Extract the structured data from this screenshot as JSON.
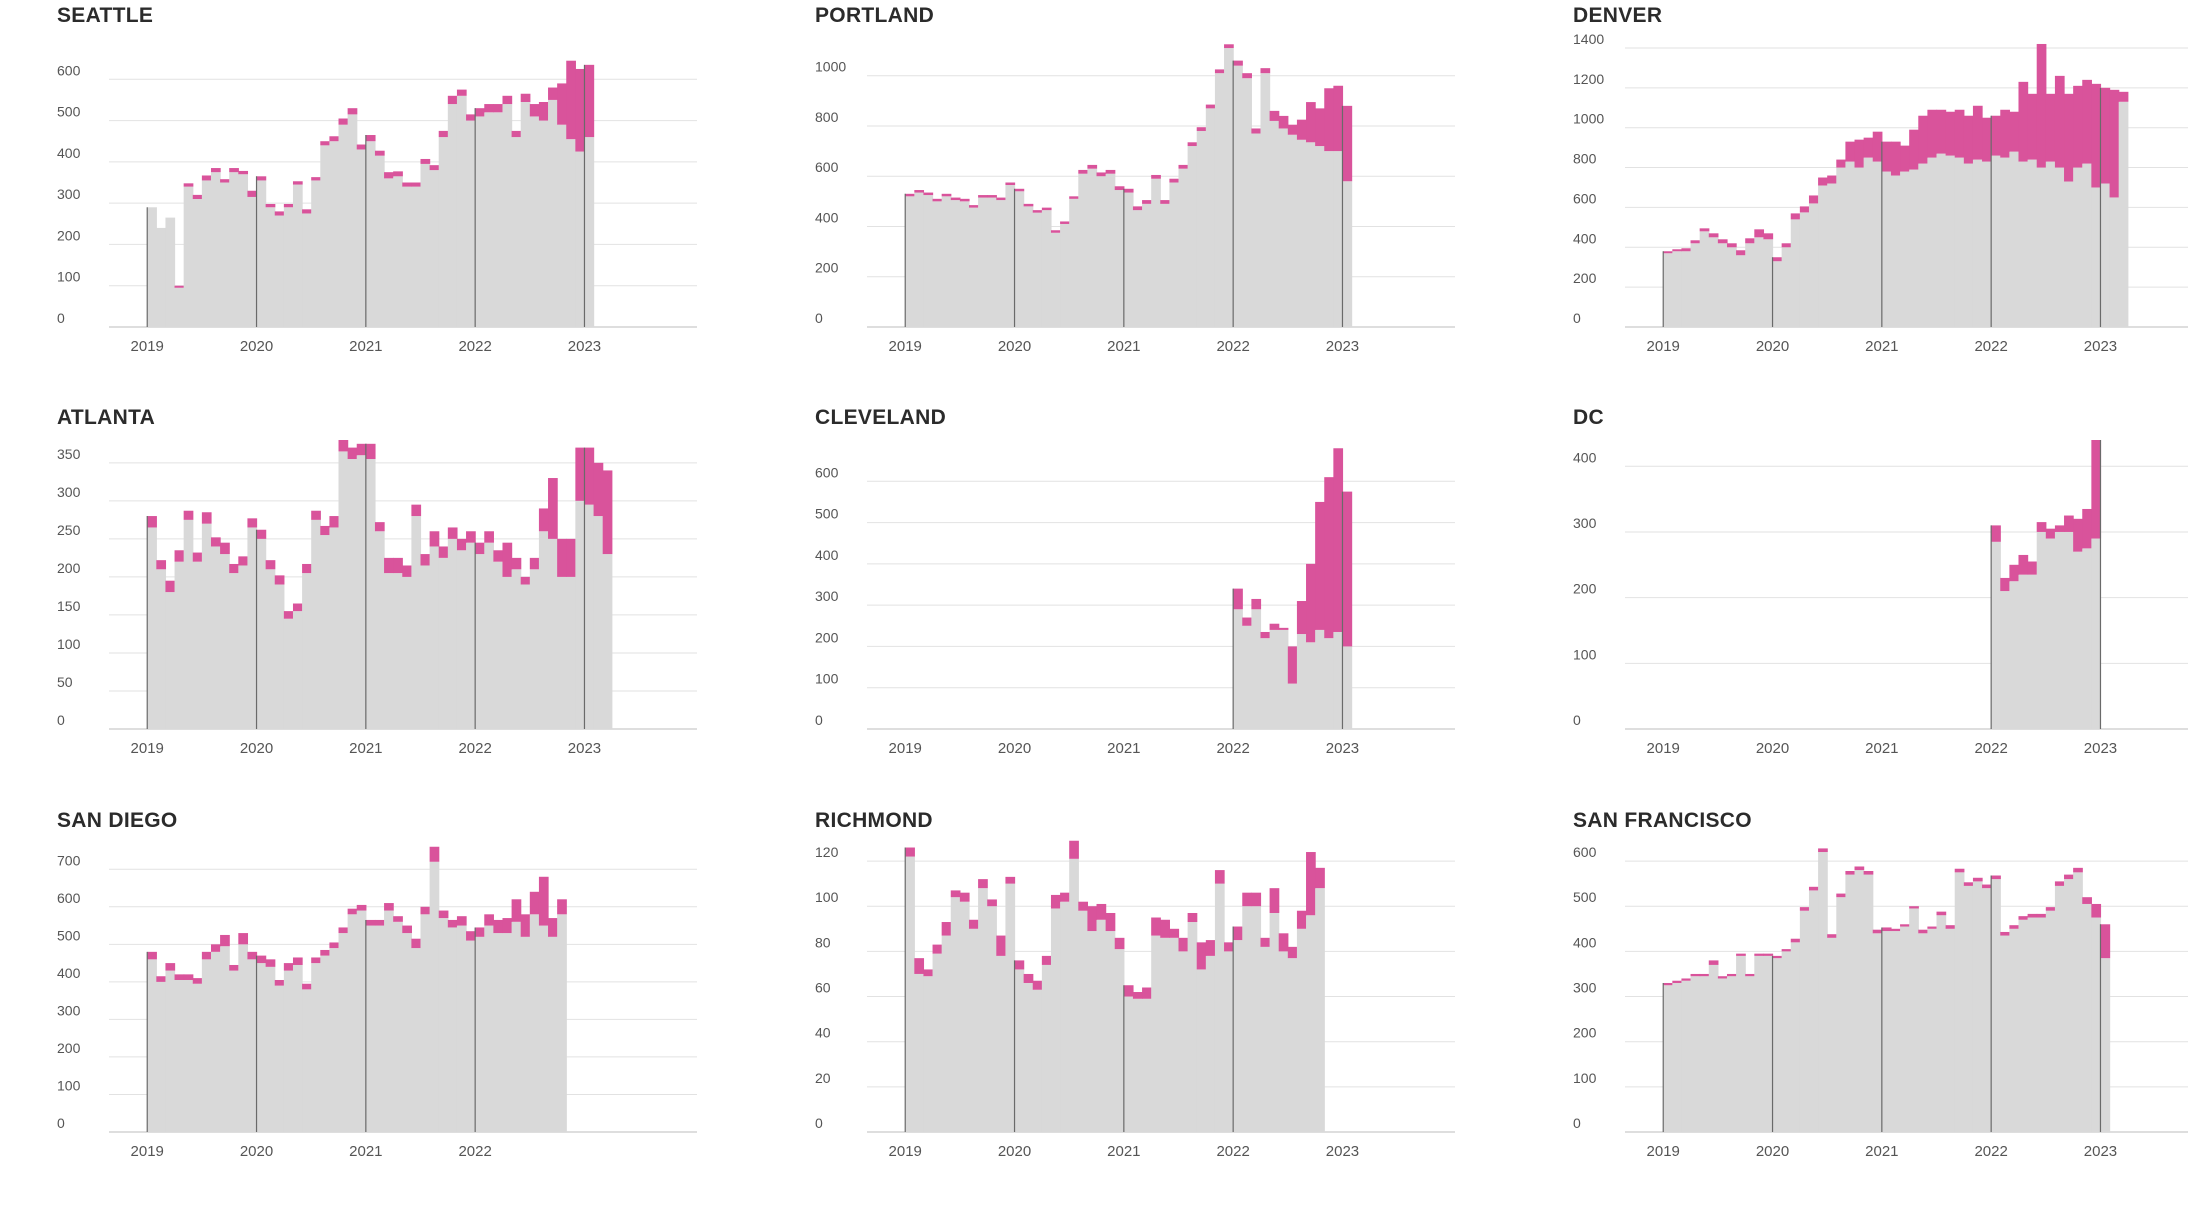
{
  "colors": {
    "base": "#d9d9d9",
    "highlight": "#d9539b",
    "grid": "#e2e2e2",
    "axis": "#bdbdbd",
    "year_line": "#6a6a6a",
    "text": "#555555",
    "title": "#2b2b2b"
  },
  "chart_data": [
    {
      "type": "bar",
      "title": "SEATTLE",
      "x_ticks": [
        "2019",
        "2020",
        "2021",
        "2022",
        "2023"
      ],
      "ylim": [
        0,
        700
      ],
      "y_ticks": [
        0,
        100,
        200,
        300,
        400,
        500,
        600
      ],
      "series": [
        {
          "values": [
            290,
            240,
            265,
            95,
            340,
            310,
            355,
            375,
            350,
            375,
            370,
            315,
            355,
            290,
            270,
            290,
            345,
            275,
            355,
            440,
            450,
            490,
            515,
            430,
            450,
            415,
            360,
            365,
            340,
            340,
            395,
            380,
            460,
            540,
            560,
            500,
            510,
            520,
            520,
            540,
            460,
            545,
            510,
            500,
            550,
            490,
            455,
            425,
            460
          ]
        },
        {
          "values": [
            0,
            0,
            0,
            5,
            8,
            10,
            12,
            10,
            8,
            10,
            8,
            15,
            10,
            8,
            10,
            8,
            8,
            10,
            8,
            10,
            12,
            15,
            15,
            12,
            15,
            12,
            15,
            12,
            10,
            10,
            12,
            12,
            15,
            20,
            15,
            15,
            20,
            20,
            20,
            20,
            15,
            20,
            30,
            45,
            30,
            100,
            190,
            200,
            175
          ]
        }
      ]
    },
    {
      "type": "bar",
      "title": "PORTLAND",
      "x_ticks": [
        "2019",
        "2020",
        "2021",
        "2022",
        "2023"
      ],
      "ylim": [
        0,
        1150
      ],
      "y_ticks": [
        0,
        200,
        400,
        600,
        800,
        1000
      ],
      "series": [
        {
          "values": [
            520,
            535,
            525,
            500,
            520,
            505,
            500,
            475,
            515,
            515,
            505,
            565,
            540,
            480,
            455,
            465,
            375,
            410,
            510,
            610,
            630,
            600,
            610,
            545,
            535,
            465,
            490,
            590,
            490,
            575,
            630,
            720,
            780,
            870,
            1010,
            1110,
            1040,
            990,
            770,
            1010,
            820,
            790,
            765,
            745,
            735,
            720,
            700,
            700,
            580
          ]
        },
        {
          "values": [
            10,
            10,
            10,
            10,
            10,
            10,
            10,
            10,
            10,
            10,
            10,
            10,
            10,
            10,
            10,
            10,
            10,
            10,
            10,
            15,
            15,
            15,
            15,
            15,
            15,
            15,
            15,
            15,
            15,
            15,
            15,
            15,
            15,
            15,
            15,
            15,
            20,
            20,
            20,
            20,
            40,
            50,
            40,
            80,
            160,
            150,
            250,
            260,
            300
          ]
        }
      ]
    },
    {
      "type": "bar",
      "title": "DENVER",
      "x_ticks": [
        "2019",
        "2020",
        "2021",
        "2022",
        "2023"
      ],
      "ylim": [
        0,
        1450
      ],
      "y_ticks": [
        0,
        200,
        400,
        600,
        800,
        1000,
        1200,
        1400
      ],
      "series": [
        {
          "values": [
            370,
            380,
            380,
            420,
            480,
            450,
            420,
            400,
            360,
            420,
            450,
            440,
            330,
            400,
            540,
            575,
            620,
            710,
            720,
            800,
            830,
            800,
            850,
            830,
            780,
            760,
            780,
            790,
            820,
            850,
            870,
            860,
            850,
            820,
            840,
            830,
            860,
            850,
            880,
            830,
            840,
            800,
            830,
            800,
            730,
            800,
            820,
            700,
            720,
            650,
            1130
          ]
        },
        {
          "values": [
            10,
            10,
            15,
            15,
            15,
            20,
            20,
            20,
            25,
            25,
            40,
            30,
            20,
            20,
            30,
            30,
            40,
            40,
            40,
            40,
            100,
            140,
            100,
            150,
            150,
            170,
            130,
            200,
            240,
            240,
            220,
            220,
            240,
            240,
            270,
            220,
            200,
            240,
            200,
            400,
            330,
            620,
            340,
            460,
            440,
            410,
            420,
            520,
            480,
            540,
            50
          ]
        }
      ]
    },
    {
      "type": "bar",
      "title": "ATLANTA",
      "x_ticks": [
        "2019",
        "2020",
        "2021",
        "2022",
        "2023"
      ],
      "ylim": [
        0,
        380
      ],
      "y_ticks": [
        0,
        50,
        100,
        150,
        200,
        250,
        300,
        350
      ],
      "series": [
        {
          "values": [
            265,
            210,
            180,
            220,
            275,
            220,
            270,
            240,
            230,
            205,
            215,
            265,
            250,
            210,
            190,
            145,
            155,
            205,
            275,
            255,
            265,
            365,
            355,
            360,
            355,
            260,
            205,
            205,
            200,
            280,
            215,
            240,
            225,
            250,
            235,
            245,
            230,
            245,
            220,
            200,
            210,
            190,
            210,
            260,
            250,
            200,
            200,
            300,
            295,
            280,
            230
          ]
        },
        {
          "values": [
            15,
            12,
            15,
            15,
            12,
            12,
            15,
            12,
            15,
            12,
            12,
            12,
            12,
            12,
            12,
            10,
            10,
            12,
            12,
            12,
            15,
            15,
            15,
            15,
            20,
            12,
            20,
            20,
            15,
            15,
            15,
            20,
            15,
            15,
            15,
            15,
            15,
            15,
            15,
            45,
            15,
            10,
            15,
            30,
            80,
            50,
            50,
            70,
            75,
            70,
            110
          ]
        }
      ]
    },
    {
      "type": "bar",
      "title": "CLEVELAND",
      "x_ticks": [
        "2019",
        "2020",
        "2021",
        "2022",
        "2023"
      ],
      "ylim": [
        0,
        700
      ],
      "y_ticks": [
        0,
        100,
        200,
        300,
        400,
        500,
        600
      ],
      "series": [
        {
          "values": [
            290,
            250,
            290,
            220,
            240,
            240,
            110,
            230,
            210,
            240,
            220,
            235,
            200
          ]
        },
        {
          "values": [
            50,
            20,
            25,
            15,
            15,
            5,
            90,
            80,
            190,
            310,
            390,
            445,
            375
          ]
        }
      ]
    },
    {
      "type": "bar",
      "title": "DC",
      "x_ticks": [
        "2019",
        "2020",
        "2021",
        "2022",
        "2023"
      ],
      "ylim": [
        0,
        440
      ],
      "y_ticks": [
        0,
        100,
        200,
        300,
        400
      ],
      "series": [
        {
          "values": [
            285,
            210,
            225,
            235,
            235,
            300,
            290,
            300,
            300,
            270,
            275,
            290
          ]
        },
        {
          "values": [
            25,
            20,
            25,
            30,
            20,
            15,
            15,
            10,
            25,
            50,
            60,
            150
          ]
        }
      ]
    },
    {
      "type": "bar",
      "title": "SAN DIEGO",
      "x_ticks": [
        "2019",
        "2020",
        "2021",
        "2022"
      ],
      "ylim": [
        0,
        770
      ],
      "y_ticks": [
        0,
        100,
        200,
        300,
        400,
        500,
        600,
        700
      ],
      "series": [
        {
          "values": [
            460,
            400,
            430,
            405,
            405,
            395,
            460,
            480,
            495,
            430,
            500,
            460,
            450,
            440,
            390,
            430,
            445,
            380,
            450,
            470,
            490,
            530,
            580,
            590,
            550,
            550,
            590,
            560,
            530,
            490,
            580,
            720,
            570,
            545,
            550,
            510,
            520,
            550,
            530,
            530,
            560,
            520,
            580,
            550,
            520,
            580
          ]
        },
        {
          "values": [
            20,
            15,
            20,
            15,
            15,
            15,
            20,
            20,
            30,
            15,
            30,
            20,
            20,
            20,
            15,
            20,
            20,
            15,
            15,
            15,
            15,
            15,
            15,
            15,
            15,
            15,
            20,
            15,
            20,
            25,
            20,
            40,
            20,
            20,
            25,
            25,
            25,
            30,
            35,
            40,
            60,
            60,
            60,
            130,
            50,
            40
          ]
        }
      ]
    },
    {
      "type": "bar",
      "title": "RICHMOND",
      "x_ticks": [
        "2019",
        "2020",
        "2021",
        "2022",
        "2023"
      ],
      "ylim": [
        0,
        128
      ],
      "y_ticks": [
        0,
        20,
        40,
        60,
        80,
        100,
        120
      ],
      "series": [
        {
          "values": [
            122,
            70,
            69,
            79,
            87,
            104,
            102,
            90,
            108,
            100,
            78,
            110,
            72,
            66,
            63,
            74,
            99,
            102,
            121,
            98,
            89,
            94,
            89,
            81,
            60,
            59,
            59,
            87,
            86,
            86,
            80,
            93,
            72,
            78,
            110,
            80,
            85,
            100,
            100,
            82,
            97,
            80,
            77,
            90,
            96,
            108
          ]
        },
        {
          "values": [
            4,
            7,
            3,
            4,
            6,
            3,
            4,
            4,
            4,
            3,
            9,
            3,
            4,
            4,
            4,
            4,
            6,
            4,
            8,
            4,
            11,
            7,
            8,
            5,
            5,
            3,
            5,
            8,
            8,
            4,
            6,
            4,
            12,
            7,
            6,
            4,
            6,
            6,
            6,
            4,
            11,
            8,
            5,
            8,
            28,
            9
          ]
        }
      ]
    },
    {
      "type": "bar",
      "title": "SAN FRANCISCO",
      "x_ticks": [
        "2019",
        "2020",
        "2021",
        "2022",
        "2023"
      ],
      "ylim": [
        0,
        640
      ],
      "y_ticks": [
        0,
        100,
        200,
        300,
        400,
        500,
        600
      ],
      "series": [
        {
          "values": [
            325,
            330,
            335,
            345,
            345,
            370,
            340,
            345,
            390,
            345,
            390,
            390,
            385,
            400,
            420,
            490,
            535,
            620,
            430,
            520,
            570,
            580,
            570,
            440,
            445,
            445,
            455,
            495,
            440,
            450,
            480,
            450,
            575,
            545,
            555,
            540,
            560,
            435,
            450,
            470,
            475,
            475,
            490,
            545,
            560,
            575,
            505,
            475,
            385
          ]
        },
        {
          "values": [
            5,
            5,
            5,
            5,
            5,
            10,
            5,
            5,
            5,
            5,
            5,
            5,
            5,
            5,
            8,
            8,
            8,
            8,
            8,
            8,
            8,
            8,
            8,
            8,
            8,
            5,
            5,
            5,
            8,
            5,
            8,
            8,
            8,
            8,
            8,
            8,
            8,
            8,
            8,
            8,
            8,
            8,
            8,
            10,
            10,
            10,
            15,
            30,
            75
          ]
        }
      ]
    }
  ]
}
